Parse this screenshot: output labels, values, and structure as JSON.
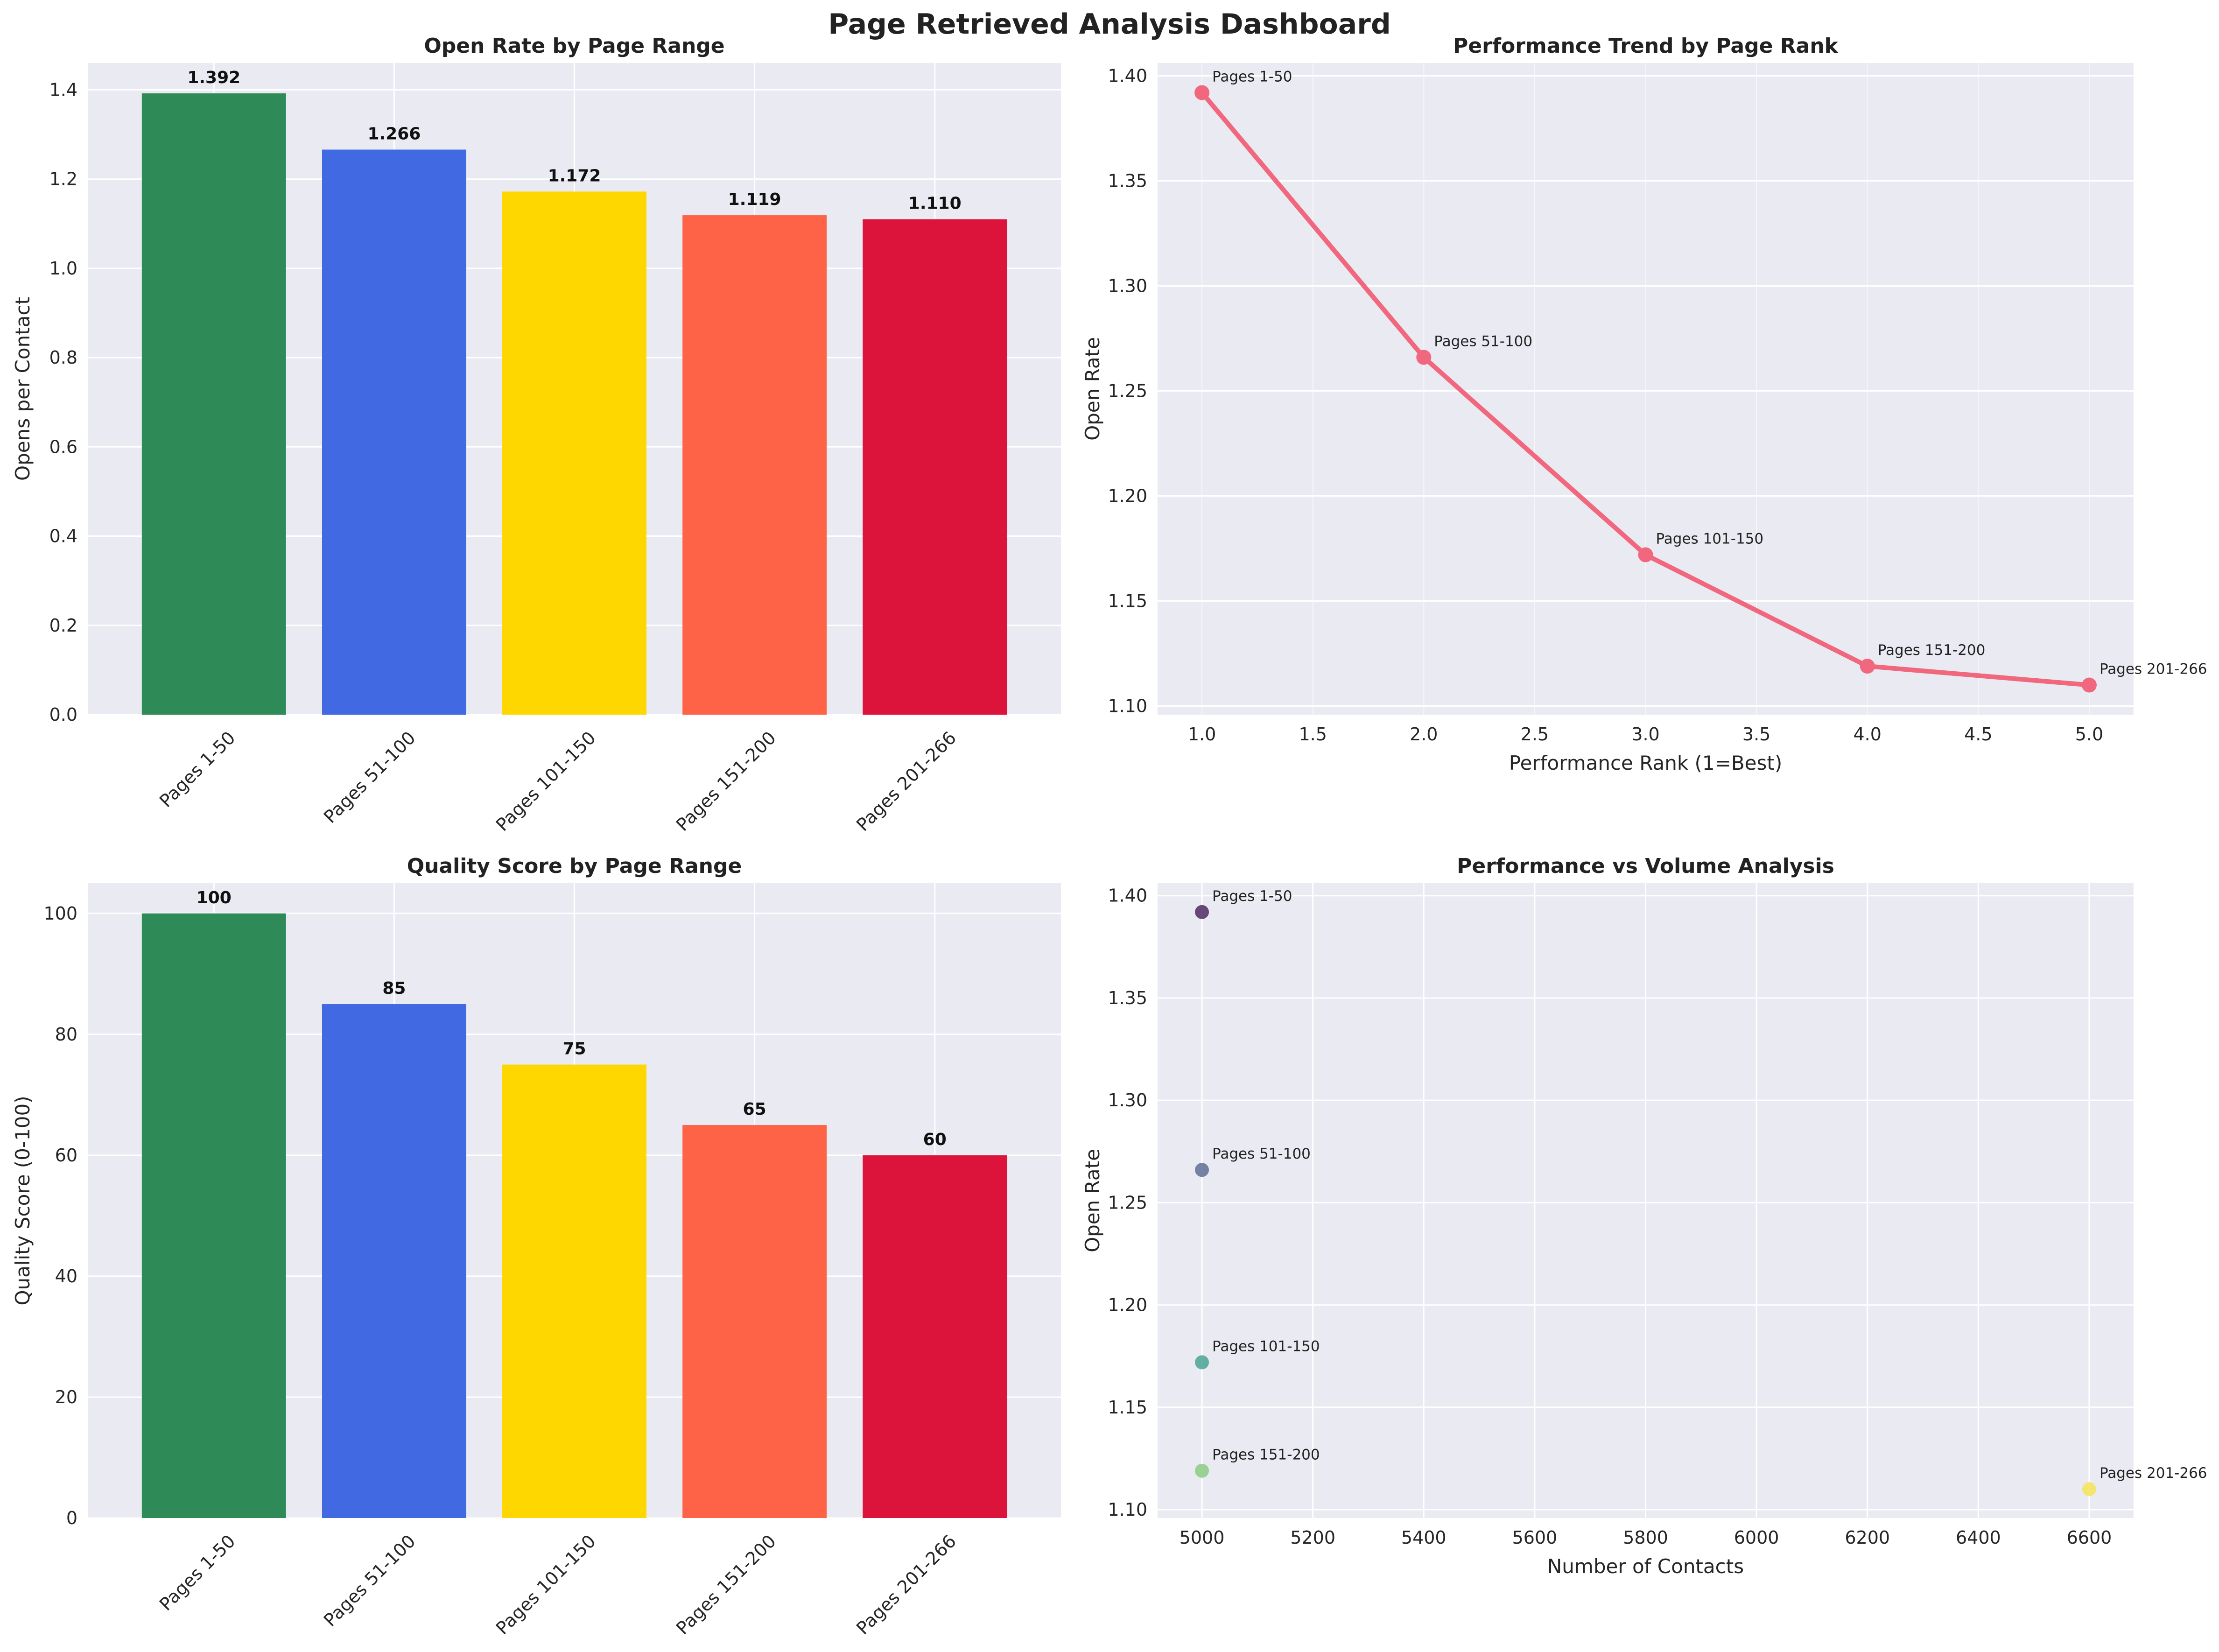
{
  "dashboard": {
    "title": "Page Retrieved Analysis Dashboard"
  },
  "colors": {
    "axes_face": "#EAEAF2",
    "grid": "#FFFFFF",
    "bar_colors": [
      "#2E8B57",
      "#4169E1",
      "#FFD700",
      "#FF6347",
      "#DC143C"
    ],
    "line_color": "#F0677E",
    "scatter_colors": [
      "#4F2A63",
      "#5F6F97",
      "#4AA394",
      "#8ACD83",
      "#F6E45A"
    ]
  },
  "chart_data": [
    {
      "id": "open_rate_bar",
      "type": "bar",
      "title": "Open Rate by Page Range",
      "xlabel": "",
      "ylabel": "Opens per Contact",
      "categories": [
        "Pages 1-50",
        "Pages 51-100",
        "Pages 101-150",
        "Pages 151-200",
        "Pages 201-266"
      ],
      "values": [
        1.392,
        1.266,
        1.172,
        1.119,
        1.11
      ],
      "value_labels": [
        "1.392",
        "1.266",
        "1.172",
        "1.119",
        "1.110"
      ],
      "ylim": [
        0,
        1.46
      ],
      "yticks": [
        0.0,
        0.2,
        0.4,
        0.6,
        0.8,
        1.0,
        1.2,
        1.4
      ],
      "ytick_labels": [
        "0.0",
        "0.2",
        "0.4",
        "0.6",
        "0.8",
        "1.0",
        "1.2",
        "1.4"
      ],
      "grid": true,
      "xtick_rotation": 45
    },
    {
      "id": "trend_line",
      "type": "line",
      "title": "Performance Trend by Page Rank",
      "xlabel": "Performance Rank (1=Best)",
      "ylabel": "Open Rate",
      "x": [
        1,
        2,
        3,
        4,
        5
      ],
      "y": [
        1.392,
        1.266,
        1.172,
        1.119,
        1.11
      ],
      "point_labels": [
        "Pages 1-50",
        "Pages 51-100",
        "Pages 101-150",
        "Pages 151-200",
        "Pages 201-266"
      ],
      "xlim": [
        0.8,
        5.2
      ],
      "ylim": [
        1.0959,
        1.4061
      ],
      "xticks": [
        1.0,
        1.5,
        2.0,
        2.5,
        3.0,
        3.5,
        4.0,
        4.5,
        5.0
      ],
      "xtick_labels": [
        "1.0",
        "1.5",
        "2.0",
        "2.5",
        "3.0",
        "3.5",
        "4.0",
        "4.5",
        "5.0"
      ],
      "yticks": [
        1.1,
        1.15,
        1.2,
        1.25,
        1.3,
        1.35,
        1.4
      ],
      "ytick_labels": [
        "1.10",
        "1.15",
        "1.20",
        "1.25",
        "1.30",
        "1.35",
        "1.40"
      ],
      "grid": true
    },
    {
      "id": "quality_bar",
      "type": "bar",
      "title": "Quality Score by Page Range",
      "xlabel": "",
      "ylabel": "Quality Score (0-100)",
      "categories": [
        "Pages 1-50",
        "Pages 51-100",
        "Pages 101-150",
        "Pages 151-200",
        "Pages 201-266"
      ],
      "values": [
        100,
        85,
        75,
        65,
        60
      ],
      "value_labels": [
        "100",
        "85",
        "75",
        "65",
        "60"
      ],
      "ylim": [
        0,
        105
      ],
      "yticks": [
        0,
        20,
        40,
        60,
        80,
        100
      ],
      "ytick_labels": [
        "0",
        "20",
        "40",
        "60",
        "80",
        "100"
      ],
      "grid": true,
      "xtick_rotation": 45
    },
    {
      "id": "volume_scatter",
      "type": "scatter",
      "title": "Performance vs Volume Analysis",
      "xlabel": "Number of Contacts",
      "ylabel": "Open Rate",
      "x": [
        5000,
        5000,
        5000,
        5000,
        6600
      ],
      "y": [
        1.392,
        1.266,
        1.172,
        1.119,
        1.11
      ],
      "point_labels": [
        "Pages 1-50",
        "Pages 51-100",
        "Pages 101-150",
        "Pages 151-200",
        "Pages 201-266"
      ],
      "xlim": [
        4920,
        6680
      ],
      "ylim": [
        1.0959,
        1.4061
      ],
      "xticks": [
        5000,
        5200,
        5400,
        5600,
        5800,
        6000,
        6200,
        6400,
        6600
      ],
      "xtick_labels": [
        "5000",
        "5200",
        "5400",
        "5600",
        "5800",
        "6000",
        "6200",
        "6400",
        "6600"
      ],
      "yticks": [
        1.1,
        1.15,
        1.2,
        1.25,
        1.3,
        1.35,
        1.4
      ],
      "ytick_labels": [
        "1.10",
        "1.15",
        "1.20",
        "1.25",
        "1.30",
        "1.35",
        "1.40"
      ],
      "grid": true
    }
  ]
}
